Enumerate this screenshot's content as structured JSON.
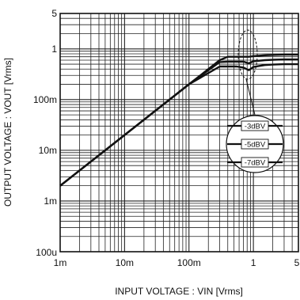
{
  "chart_data": {
    "type": "line",
    "title": "",
    "xlabel": "INPUT VOLTAGE : VIN [Vrms]",
    "ylabel": "OUTPUT VOLTAGE : VOUT [Vrms]",
    "x_scale": "log",
    "y_scale": "log",
    "xlim": [
      0.001,
      5
    ],
    "ylim": [
      0.0001,
      5
    ],
    "x_ticks": [
      {
        "value": 0.001,
        "label": "1m"
      },
      {
        "value": 0.01,
        "label": "10m"
      },
      {
        "value": 0.1,
        "label": "100m"
      },
      {
        "value": 1,
        "label": "1"
      },
      {
        "value": 5,
        "label": "5"
      }
    ],
    "y_ticks": [
      {
        "value": 0.0001,
        "label": "100u"
      },
      {
        "value": 0.001,
        "label": "1m"
      },
      {
        "value": 0.01,
        "label": "10m"
      },
      {
        "value": 0.1,
        "label": "100m"
      },
      {
        "value": 1,
        "label": "1"
      },
      {
        "value": 5,
        "label": "5"
      }
    ],
    "grid": true,
    "series": [
      {
        "name": "-3dBV",
        "x": [
          0.001,
          0.01,
          0.1,
          0.3,
          0.4,
          0.55,
          0.7,
          0.85,
          1.0,
          1.5,
          2.0,
          3.0,
          5.0
        ],
        "y": [
          0.002,
          0.02,
          0.2,
          0.6,
          0.7,
          0.7,
          0.7,
          0.7,
          0.72,
          0.75,
          0.76,
          0.77,
          0.77
        ]
      },
      {
        "name": "-5dBV",
        "x": [
          0.001,
          0.01,
          0.1,
          0.3,
          0.4,
          0.55,
          0.7,
          0.85,
          1.0,
          1.5,
          2.0,
          3.0,
          5.0
        ],
        "y": [
          0.002,
          0.02,
          0.2,
          0.55,
          0.56,
          0.56,
          0.56,
          0.52,
          0.57,
          0.6,
          0.61,
          0.62,
          0.62
        ]
      },
      {
        "name": "-7dBV",
        "x": [
          0.001,
          0.01,
          0.1,
          0.3,
          0.4,
          0.55,
          0.7,
          0.85,
          1.0,
          1.5,
          2.0,
          3.0,
          5.0
        ],
        "y": [
          0.002,
          0.02,
          0.2,
          0.45,
          0.45,
          0.45,
          0.43,
          0.38,
          0.44,
          0.48,
          0.49,
          0.5,
          0.5
        ]
      }
    ],
    "annotations": [
      "-3dBV",
      "-5dBV",
      "-7dBV"
    ]
  }
}
